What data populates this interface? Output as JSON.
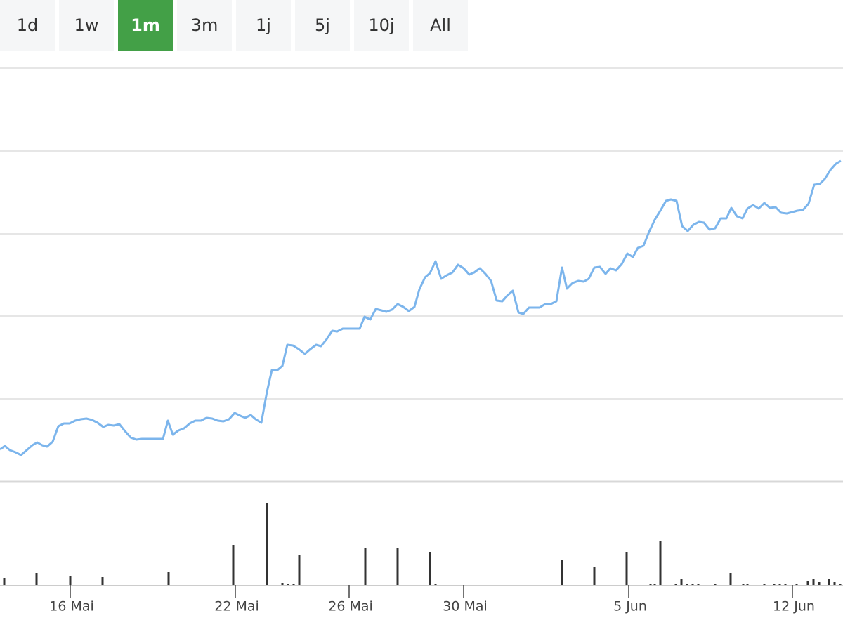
{
  "buttons": [
    "1d",
    "1w",
    "1m",
    "3m",
    "1j",
    "5j",
    "10j",
    "All"
  ],
  "active_button": 2,
  "chart_data": [
    {
      "type": "line",
      "xlim": [
        0,
        120
      ],
      "ylim": [
        0,
        589
      ],
      "yticks": [
        0,
        118,
        236,
        353,
        471,
        589
      ],
      "grid": true,
      "x": [
        0,
        0.7,
        1.4,
        2.2,
        3,
        3.8,
        4.6,
        5.3,
        6,
        6.7,
        7.5,
        8.3,
        9.1,
        9.9,
        10.7,
        11.5,
        12.3,
        13.1,
        13.9,
        14.7,
        15.4,
        16.2,
        17,
        17.8,
        18.6,
        19.4,
        20.2,
        21.6,
        23.2,
        23.9,
        24.6,
        25.4,
        26.2,
        27,
        27.8,
        28.6,
        29.4,
        30.2,
        31,
        31.8,
        32.6,
        33.4,
        34.2,
        34.9,
        35.7,
        36.4,
        37.2,
        38,
        38.7,
        39.5,
        40.2,
        40.9,
        41.7,
        42.5,
        43.4,
        44.2,
        45,
        45.7,
        46.5,
        47.3,
        48,
        48.8,
        49.6,
        51.2,
        51.9,
        52.7,
        53.5,
        54.3,
        55,
        55.8,
        56.6,
        57.4,
        58.2,
        59,
        59.7,
        60.5,
        61.2,
        62,
        62.8,
        63.6,
        64.4,
        65.2,
        66,
        66.8,
        67.5,
        68.3,
        69.1,
        69.9,
        70.7,
        71.5,
        72.2,
        73,
        73.8,
        74.5,
        75.3,
        76.8,
        77.6,
        78.4,
        79.2,
        80,
        80.7,
        81.5,
        82.3,
        83.1,
        83.8,
        84.6,
        85.4,
        86.2,
        86.9,
        87.7,
        88.5,
        89.3,
        90.1,
        90.8,
        91.6,
        92.4,
        93.2,
        94,
        94.8,
        95.5,
        96.3,
        97.1,
        97.9,
        98.7,
        99.5,
        100.2,
        101,
        101.8,
        102.6,
        103.4,
        104.1,
        104.9,
        105.7,
        106.4,
        107.2,
        108,
        108.8,
        109.6,
        110.4,
        111.2,
        112,
        112.8,
        113.5,
        114.3,
        115.1,
        115.9,
        116.7,
        117.4,
        118.2,
        119,
        119.7
      ],
      "series": [
        {
          "color": "#7cb5ec",
          "values": [
            46,
            51,
            45,
            42,
            38,
            45,
            52,
            56,
            52,
            50,
            57,
            79,
            83,
            83,
            87,
            89,
            90,
            88,
            84,
            78,
            81,
            80,
            82,
            72,
            63,
            60,
            61,
            61,
            61,
            87,
            67,
            73,
            76,
            83,
            87,
            87,
            91,
            90,
            87,
            86,
            89,
            98,
            94,
            91,
            95,
            89,
            84,
            128,
            159,
            159,
            165,
            195,
            194,
            189,
            182,
            189,
            195,
            193,
            203,
            215,
            214,
            218,
            218,
            218,
            235,
            231,
            246,
            244,
            242,
            245,
            253,
            249,
            243,
            249,
            274,
            291,
            297,
            314,
            289,
            294,
            298,
            309,
            304,
            295,
            298,
            304,
            296,
            286,
            258,
            257,
            265,
            272,
            241,
            239,
            248,
            248,
            253,
            253,
            257,
            305,
            275,
            283,
            286,
            285,
            289,
            305,
            306,
            296,
            304,
            301,
            310,
            325,
            320,
            333,
            336,
            356,
            373,
            386,
            400,
            402,
            400,
            364,
            357,
            366,
            370,
            369,
            359,
            361,
            375,
            375,
            390,
            378,
            375,
            389,
            394,
            389,
            397,
            390,
            391,
            383,
            382,
            384,
            386,
            387,
            396,
            423,
            424,
            431,
            444,
            453,
            457
          ]
        }
      ]
    },
    {
      "type": "bar",
      "xlim": [
        0,
        120
      ],
      "ylim": [
        0,
        140
      ],
      "color": "#333333",
      "x": [
        0.6,
        5.2,
        10,
        14.6,
        24,
        33.2,
        38,
        40.2,
        41,
        41.8,
        42.6,
        52,
        56.6,
        61.2,
        62,
        80,
        84.6,
        89.2,
        92.6,
        93.2,
        94,
        96.2,
        97,
        97.8,
        98.6,
        99.4,
        101.8,
        104,
        105.8,
        106.4,
        108.8,
        110.2,
        111,
        111.8,
        113.4,
        115,
        115.8,
        116.6,
        118,
        118.8,
        119.6
      ],
      "values": [
        10,
        17,
        13,
        11,
        19,
        57,
        117,
        3,
        2,
        2,
        43,
        53,
        53,
        47,
        2,
        35,
        25,
        47,
        2,
        2,
        63,
        2,
        9,
        2,
        2,
        2,
        2,
        17,
        2,
        2,
        2,
        2,
        2,
        2,
        2,
        6,
        9,
        4,
        9,
        4,
        2
      ],
      "xticks": [
        {
          "value": 10,
          "label": "16 Mai"
        },
        {
          "value": 33.5,
          "label": "22 Mai"
        },
        {
          "value": 49.7,
          "label": "26 Mai"
        },
        {
          "value": 66,
          "label": "30 Mai"
        },
        {
          "value": 89.5,
          "label": "5 Jun"
        },
        {
          "value": 112.8,
          "label": "12 Jun"
        }
      ]
    }
  ]
}
